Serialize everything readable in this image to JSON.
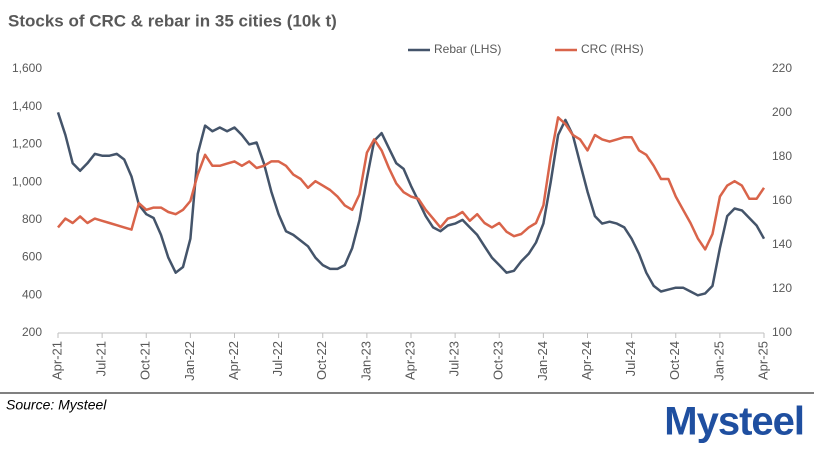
{
  "chart_data": {
    "type": "line",
    "title": "Stocks of CRC & rebar in 35 cities (10k t)",
    "categories": [
      "Apr-21",
      null,
      null,
      null,
      null,
      null,
      "Jul-21",
      null,
      null,
      null,
      null,
      null,
      "Oct-21",
      null,
      null,
      null,
      null,
      null,
      "Jan-22",
      null,
      null,
      null,
      null,
      null,
      "Apr-22",
      null,
      null,
      null,
      null,
      null,
      "Jul-22",
      null,
      null,
      null,
      null,
      null,
      "Oct-22",
      null,
      null,
      null,
      null,
      null,
      "Jan-23",
      null,
      null,
      null,
      null,
      null,
      "Apr-23",
      null,
      null,
      null,
      null,
      null,
      "Jul-23",
      null,
      null,
      null,
      null,
      null,
      "Oct-23",
      null,
      null,
      null,
      null,
      null,
      "Jan-24",
      null,
      null,
      null,
      null,
      null,
      "Apr-24",
      null,
      null,
      null,
      null,
      null,
      "Jul-24",
      null,
      null,
      null,
      null,
      null,
      "Oct-24",
      null,
      null,
      null,
      null,
      null,
      "Jan-25",
      null,
      null,
      null,
      null,
      null,
      "Apr-25"
    ],
    "series": [
      {
        "name": "Rebar (LHS)",
        "color": "#44546a",
        "axis": "y",
        "values": [
          1370,
          1250,
          1100,
          1060,
          1100,
          1150,
          1140,
          1140,
          1150,
          1120,
          1030,
          880,
          830,
          810,
          720,
          600,
          520,
          550,
          700,
          1150,
          1300,
          1270,
          1290,
          1270,
          1290,
          1250,
          1200,
          1210,
          1100,
          950,
          830,
          740,
          720,
          690,
          660,
          600,
          560,
          540,
          540,
          560,
          650,
          800,
          1020,
          1220,
          1260,
          1180,
          1100,
          1070,
          980,
          900,
          820,
          760,
          740,
          770,
          780,
          800,
          760,
          720,
          660,
          600,
          560,
          520,
          530,
          580,
          620,
          680,
          780,
          1000,
          1250,
          1330,
          1250,
          1100,
          950,
          820,
          780,
          790,
          780,
          760,
          700,
          620,
          520,
          450,
          420,
          430,
          440,
          440,
          420,
          400,
          410,
          450,
          650,
          820,
          860,
          850,
          810,
          770,
          700
        ]
      },
      {
        "name": "CRC (RHS)",
        "color": "#d9644a",
        "axis": "y2",
        "values": [
          148,
          152,
          150,
          153,
          150,
          152,
          151,
          150,
          149,
          148,
          147,
          159,
          156,
          157,
          157,
          155,
          154,
          156,
          160,
          172,
          181,
          176,
          176,
          177,
          178,
          176,
          178,
          175,
          176,
          178,
          178,
          176,
          172,
          170,
          166,
          169,
          167,
          165,
          162,
          158,
          156,
          163,
          182,
          188,
          183,
          175,
          168,
          164,
          162,
          161,
          156,
          152,
          148,
          152,
          153,
          155,
          151,
          154,
          150,
          148,
          150,
          146,
          144,
          145,
          148,
          150,
          158,
          180,
          198,
          195,
          190,
          188,
          183,
          190,
          188,
          187,
          188,
          189,
          189,
          183,
          181,
          176,
          170,
          170,
          162,
          156,
          150,
          143,
          138,
          145,
          162,
          167,
          169,
          167,
          161,
          161,
          166
        ]
      }
    ],
    "ylim": [
      200,
      1600
    ],
    "yticks": [
      {
        "value": 200,
        "label": "200"
      },
      {
        "value": 400,
        "label": "400"
      },
      {
        "value": 600,
        "label": "600"
      },
      {
        "value": 800,
        "label": "800"
      },
      {
        "value": 1000,
        "label": "1,000"
      },
      {
        "value": 1200,
        "label": "1,200"
      },
      {
        "value": 1400,
        "label": "1,400"
      },
      {
        "value": 1600,
        "label": "1,600"
      }
    ],
    "y2lim": [
      100,
      220
    ],
    "y2ticks": [
      100,
      120,
      140,
      160,
      180,
      200,
      220
    ],
    "grid": false,
    "legend": "top",
    "source": "Source: Mysteel",
    "logo": "Mysteel"
  }
}
